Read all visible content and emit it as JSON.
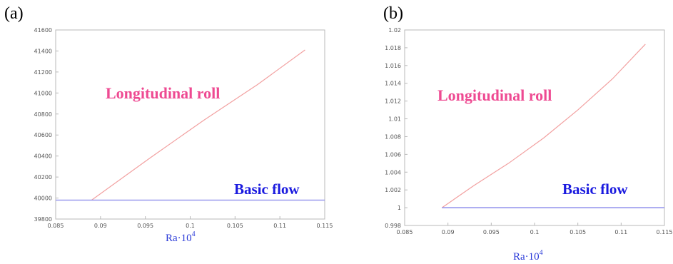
{
  "chart_data": [
    {
      "panel": "(a)",
      "type": "line",
      "xlim": [
        0.085,
        0.115
      ],
      "ylim": [
        39800,
        41600
      ],
      "x_ticks": [
        "0.085",
        "0.09",
        "0.095",
        "0.1",
        "0.105",
        "0.11",
        "0.115"
      ],
      "y_ticks": [
        "39800",
        "40000",
        "40200",
        "40400",
        "40600",
        "40800",
        "41000",
        "41200",
        "41400",
        "41600"
      ],
      "xlabel": "Ra·10",
      "xlabel_sup": "4",
      "series": [
        {
          "name": "Longitudinal roll",
          "color": "#f2a0a0",
          "x": [
            0.089,
            0.0955,
            0.1015,
            0.1075,
            0.1128
          ],
          "y": [
            39980,
            40380,
            40740,
            41080,
            41410
          ]
        },
        {
          "name": "Basic flow",
          "color": "#9999ee",
          "x": [
            0.085,
            0.115
          ],
          "y": [
            39980,
            39980
          ]
        }
      ],
      "annotations": [
        "Longitudinal roll",
        "Basic flow"
      ]
    },
    {
      "panel": "(b)",
      "type": "line",
      "xlim": [
        0.085,
        0.115
      ],
      "ylim": [
        0.998,
        1.02
      ],
      "x_ticks": [
        "0.085",
        "0.09",
        "0.095",
        "0.1",
        "0.105",
        "0.11",
        "0.115"
      ],
      "y_ticks": [
        "0.998",
        "1",
        "1.002",
        "1.004",
        "1.006",
        "1.008",
        "1.01",
        "1.012",
        "1.014",
        "1.016",
        "1.018",
        "1.02"
      ],
      "xlabel": "Ra·10",
      "xlabel_sup": "4",
      "series": [
        {
          "name": "Longitudinal roll",
          "color": "#f2a0a0",
          "x": [
            0.0893,
            0.093,
            0.097,
            0.101,
            0.105,
            0.109,
            0.1128
          ],
          "y": [
            1.0,
            1.0025,
            1.005,
            1.0078,
            1.011,
            1.0145,
            1.0184
          ]
        },
        {
          "name": "Basic flow",
          "color": "#9999ee",
          "x": [
            0.0893,
            0.115
          ],
          "y": [
            1.0,
            1.0
          ]
        }
      ],
      "annotations": [
        "Longitudinal roll",
        "Basic flow"
      ]
    }
  ]
}
